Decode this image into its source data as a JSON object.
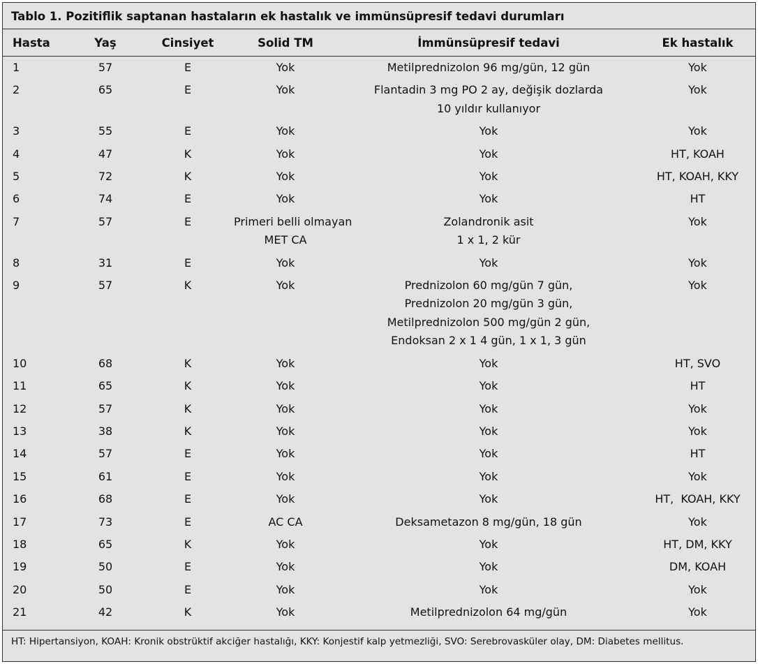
{
  "title": "Tablo 1. Pozitiflik saptanan hastaların ek hastalık ve immünsüpresif tedavi durumları",
  "table": {
    "columns": [
      "Hasta",
      "Yaş",
      "Cinsiyet",
      "Solid TM",
      "İmmünsüpresif tedavi",
      "Ek hastalık"
    ],
    "rows": [
      [
        "1",
        "57",
        "E",
        "Yok",
        "Metilprednizolon 96 mg/gün, 12 gün",
        "Yok"
      ],
      [
        "2",
        "65",
        "E",
        "Yok",
        [
          "Flantadin 3 mg PO 2 ay, değişik dozlarda",
          "10 yıldır kullanıyor"
        ],
        "Yok"
      ],
      [
        "3",
        "55",
        "E",
        "Yok",
        "Yok",
        "Yok"
      ],
      [
        "4",
        "47",
        "K",
        "Yok",
        "Yok",
        "HT, KOAH"
      ],
      [
        "5",
        "72",
        "K",
        "Yok",
        "Yok",
        "HT, KOAH, KKY"
      ],
      [
        "6",
        "74",
        "E",
        "Yok",
        "Yok",
        "HT"
      ],
      [
        "7",
        "57",
        "E",
        [
          "Primeri belli olmayan",
          "MET CA"
        ],
        [
          "Zolandronik asit",
          "1 x 1, 2 kür"
        ],
        "Yok"
      ],
      [
        "8",
        "31",
        "E",
        "Yok",
        "Yok",
        "Yok"
      ],
      [
        "9",
        "57",
        "K",
        "Yok",
        [
          "Prednizolon 60 mg/gün 7 gün,",
          "Prednizolon 20 mg/gün 3 gün,",
          "Metilprednizolon 500 mg/gün 2 gün,",
          "Endoksan 2 x 1 4 gün, 1 x 1, 3 gün"
        ],
        "Yok"
      ],
      [
        "10",
        "68",
        "K",
        "Yok",
        "Yok",
        "HT, SVO"
      ],
      [
        "11",
        "65",
        "K",
        "Yok",
        "Yok",
        "HT"
      ],
      [
        "12",
        "57",
        "K",
        "Yok",
        "Yok",
        "Yok"
      ],
      [
        "13",
        "38",
        "K",
        "Yok",
        "Yok",
        "Yok"
      ],
      [
        "14",
        "57",
        "E",
        "Yok",
        "Yok",
        "HT"
      ],
      [
        "15",
        "61",
        "E",
        "Yok",
        "Yok",
        "Yok"
      ],
      [
        "16",
        "68",
        "E",
        "Yok",
        "Yok",
        "HT,  KOAH, KKY"
      ],
      [
        "17",
        "73",
        "E",
        "AC CA",
        "Deksametazon 8 mg/gün, 18 gün",
        "Yok"
      ],
      [
        "18",
        "65",
        "K",
        "Yok",
        "Yok",
        "HT, DM, KKY"
      ],
      [
        "19",
        "50",
        "E",
        "Yok",
        "Yok",
        "DM, KOAH"
      ],
      [
        "20",
        "50",
        "E",
        "Yok",
        "Yok",
        "Yok"
      ],
      [
        "21",
        "42",
        "K",
        "Yok",
        "Metilprednizolon 64 mg/gün",
        "Yok"
      ]
    ]
  },
  "footnote": "HT: Hipertansiyon, KOAH: Kronik obstrüktif akciğer hastalığı, KKY: Konjestif kalp yetmezliği, SVO: Serebrovasküler olay, DM: Diabetes mellitus."
}
